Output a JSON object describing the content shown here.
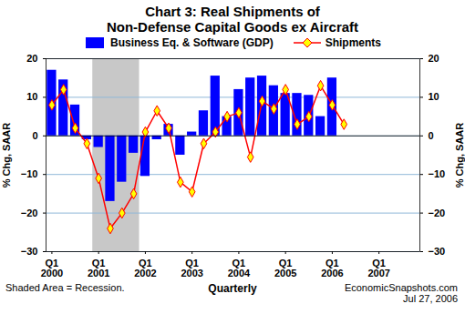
{
  "chart_data": {
    "type": "bar",
    "title": "Chart 3: Real Shipments of\nNon-Defense Capital Goods ex Aircraft",
    "categories": [
      "Q1\n2000",
      null,
      null,
      null,
      "Q1\n2001",
      null,
      null,
      null,
      "Q1\n2002",
      null,
      null,
      null,
      "Q1\n2003",
      null,
      null,
      null,
      "Q1\n2004",
      null,
      null,
      null,
      "Q1\n2005",
      null,
      null,
      null,
      "Q1\n2006",
      null,
      null,
      null,
      "Q1\n2007",
      null,
      null,
      null
    ],
    "series": [
      {
        "name": "Business Eq. & Software (GDP)",
        "type": "bar",
        "color": "#0000ff",
        "values": [
          17,
          14.5,
          8,
          -1,
          -3,
          -17,
          -12,
          -4.5,
          -10.5,
          -1,
          3,
          -5,
          1,
          6.5,
          15.5,
          5,
          12,
          15,
          15.5,
          13,
          11,
          11,
          10.5,
          5,
          15,
          null,
          null,
          null,
          null,
          null,
          null,
          null
        ]
      },
      {
        "name": "Shipments",
        "type": "line",
        "color": "#ff0000",
        "marker": "diamond",
        "values": [
          8,
          12,
          2,
          -2,
          -11,
          -24,
          -20,
          -15,
          1,
          6.5,
          2,
          -12,
          -14.5,
          -2,
          1,
          5,
          6,
          -5.5,
          9,
          7,
          12,
          3,
          5,
          13,
          8,
          3,
          null,
          null,
          null,
          null,
          null,
          null
        ]
      }
    ],
    "ylabel": "% Chg, SAAR",
    "xlabel": "Quarterly",
    "ylim": [
      -30,
      20
    ],
    "yticks": [
      -30,
      -20,
      -10,
      0,
      10,
      20
    ],
    "grid": true,
    "shading": {
      "label": "Shaded Area = Recession.",
      "start_index": 4,
      "end_index": 7
    },
    "source": "EconomicSnapshots.com",
    "date": "Jul 27, 2006"
  }
}
